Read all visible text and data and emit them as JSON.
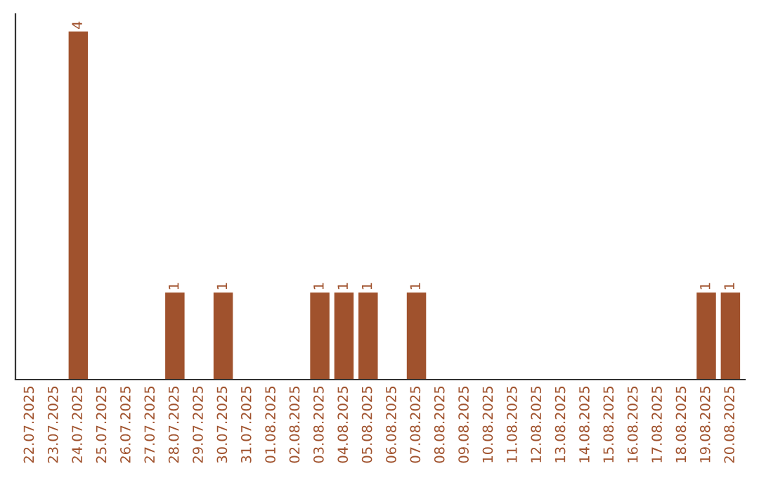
{
  "chart_data": {
    "type": "bar",
    "categories": [
      "22.07.2025",
      "23.07.2025",
      "24.07.2025",
      "25.07.2025",
      "26.07.2025",
      "27.07.2025",
      "28.07.2025",
      "29.07.2025",
      "30.07.2025",
      "31.07.2025",
      "01.08.2025",
      "02.08.2025",
      "03.08.2025",
      "04.08.2025",
      "05.08.2025",
      "06.08.2025",
      "07.08.2025",
      "08.08.2025",
      "09.08.2025",
      "10.08.2025",
      "11.08.2025",
      "12.08.2025",
      "13.08.2025",
      "14.08.2025",
      "15.08.2025",
      "16.08.2025",
      "17.08.2025",
      "18.08.2025",
      "19.08.2025",
      "20.08.2025"
    ],
    "values": [
      0,
      0,
      4,
      0,
      0,
      0,
      1,
      0,
      1,
      0,
      0,
      0,
      1,
      1,
      1,
      0,
      1,
      0,
      0,
      0,
      0,
      0,
      0,
      0,
      0,
      0,
      0,
      0,
      1,
      1
    ],
    "value_labels": [
      null,
      null,
      "4",
      null,
      null,
      null,
      "1",
      null,
      "1",
      null,
      null,
      null,
      "1",
      "1",
      "1",
      null,
      "1",
      null,
      null,
      null,
      null,
      null,
      null,
      null,
      null,
      null,
      null,
      null,
      "1",
      "1"
    ],
    "color": "#a0522d",
    "ylim": [
      0,
      4.2
    ],
    "tick_labels": "x",
    "grid": false
  }
}
